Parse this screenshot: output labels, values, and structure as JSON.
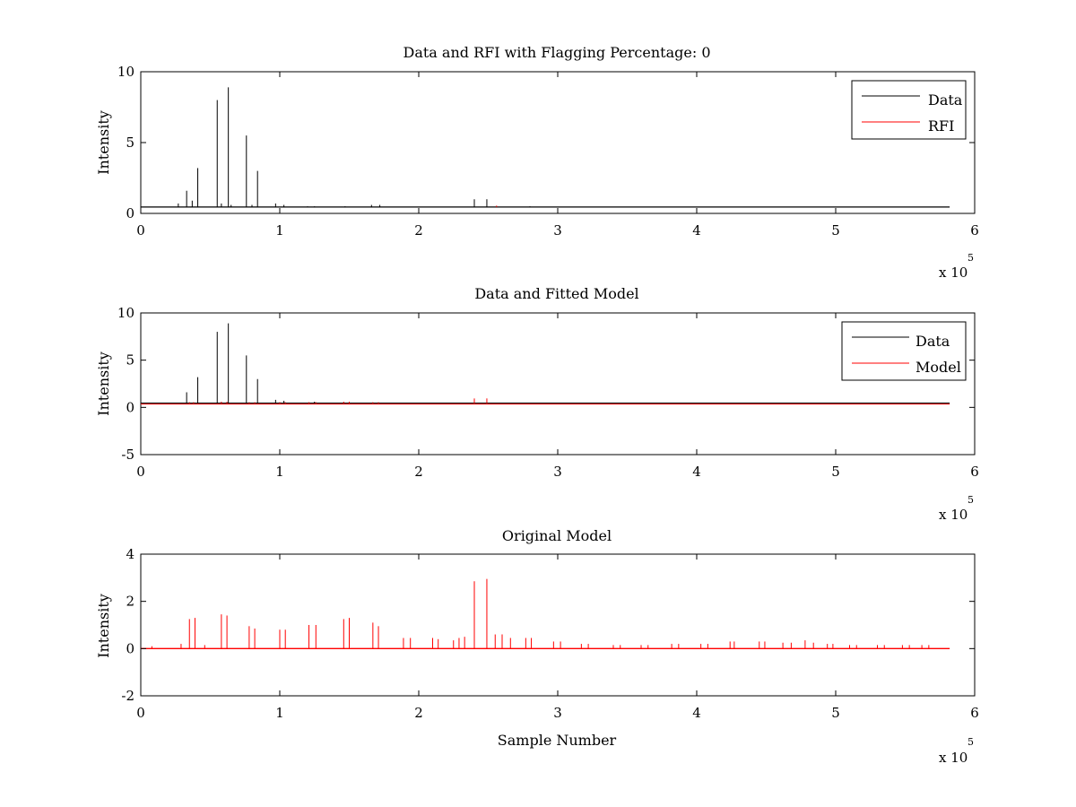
{
  "chart_data": [
    {
      "type": "line",
      "title": "Data and RFI with Flagging Percentage: 0",
      "xlabel": "",
      "ylabel": "Intensity",
      "xlim": [
        0,
        6
      ],
      "ylim": [
        0,
        10
      ],
      "xticks": [
        "0",
        "1",
        "2",
        "3",
        "4",
        "5",
        "6"
      ],
      "yticks": [
        "0",
        "5",
        "10"
      ],
      "x_multiplier": {
        "base": "x 10",
        "exponent": "5"
      },
      "legend": "top-right",
      "grid": false,
      "baseline": 0.45,
      "series": [
        {
          "name": "Data",
          "color": "#000000",
          "x": [
            0.27,
            0.33,
            0.37,
            0.41,
            0.55,
            0.58,
            0.63,
            0.65,
            0.76,
            0.8,
            0.84,
            0.97,
            1.03,
            1.2,
            1.25,
            1.47,
            1.66,
            1.72,
            2.4,
            2.49,
            2.8
          ],
          "values": [
            0.7,
            1.6,
            0.9,
            3.2,
            8.0,
            0.7,
            8.9,
            0.6,
            5.5,
            0.6,
            3.0,
            0.7,
            0.6,
            0.5,
            0.5,
            0.5,
            0.6,
            0.6,
            1.0,
            1.0,
            0.5
          ]
        },
        {
          "name": "RFI",
          "color": "#ff0000",
          "x": [
            2.56
          ],
          "values": [
            0.55
          ]
        }
      ]
    },
    {
      "type": "line",
      "title": "Data and Fitted Model",
      "xlabel": "",
      "ylabel": "Intensity",
      "xlim": [
        0,
        6
      ],
      "ylim": [
        -5,
        10
      ],
      "xticks": [
        "0",
        "1",
        "2",
        "3",
        "4",
        "5",
        "6"
      ],
      "yticks": [
        "-5",
        "0",
        "5",
        "10"
      ],
      "x_multiplier": {
        "base": "x 10",
        "exponent": "5"
      },
      "legend": "top-right",
      "grid": false,
      "baseline": 0.45,
      "series": [
        {
          "name": "Data",
          "color": "#000000",
          "x": [
            0.33,
            0.41,
            0.55,
            0.63,
            0.76,
            0.84,
            0.97,
            1.03,
            1.25
          ],
          "values": [
            1.6,
            3.2,
            8.0,
            8.9,
            5.5,
            3.0,
            0.8,
            0.7,
            0.6
          ]
        },
        {
          "name": "Model",
          "color": "#ff0000",
          "x": [
            0.35,
            0.38,
            0.58,
            0.62,
            0.78,
            0.82,
            1.0,
            1.04,
            1.21,
            1.26,
            1.46,
            1.5,
            1.67,
            1.71,
            2.4,
            2.49
          ],
          "values": [
            0.55,
            0.55,
            0.6,
            0.6,
            0.55,
            0.55,
            0.55,
            0.55,
            0.55,
            0.55,
            0.6,
            0.6,
            0.55,
            0.55,
            0.95,
            0.95
          ]
        }
      ]
    },
    {
      "type": "line",
      "title": "Original Model",
      "xlabel": "Sample Number",
      "ylabel": "Intensity",
      "xlim": [
        0,
        6
      ],
      "ylim": [
        -2,
        4
      ],
      "xticks": [
        "0",
        "1",
        "2",
        "3",
        "4",
        "5",
        "6"
      ],
      "yticks": [
        "-2",
        "0",
        "2",
        "4"
      ],
      "x_multiplier": {
        "base": "x 10",
        "exponent": "5"
      },
      "grid": false,
      "baseline": 0,
      "series": [
        {
          "color": "#ff0000",
          "x": [
            0.08,
            0.29,
            0.35,
            0.39,
            0.46,
            0.58,
            0.62,
            0.78,
            0.82,
            1.0,
            1.04,
            1.21,
            1.26,
            1.46,
            1.5,
            1.67,
            1.71,
            1.89,
            1.94,
            2.1,
            2.14,
            2.25,
            2.29,
            2.33,
            2.4,
            2.49,
            2.55,
            2.6,
            2.66,
            2.77,
            2.81,
            2.97,
            3.02,
            3.17,
            3.22,
            3.4,
            3.45,
            3.6,
            3.65,
            3.82,
            3.87,
            4.03,
            4.08,
            4.24,
            4.27,
            4.45,
            4.49,
            4.62,
            4.68,
            4.78,
            4.84,
            4.94,
            4.98,
            5.1,
            5.15,
            5.3,
            5.35,
            5.48,
            5.53,
            5.62,
            5.67
          ],
          "values": [
            0.1,
            0.2,
            1.25,
            1.3,
            0.15,
            1.45,
            1.4,
            0.95,
            0.85,
            0.8,
            0.8,
            1.0,
            1.0,
            1.25,
            1.3,
            1.1,
            0.95,
            0.45,
            0.45,
            0.45,
            0.4,
            0.35,
            0.45,
            0.5,
            2.85,
            2.95,
            0.6,
            0.6,
            0.45,
            0.45,
            0.45,
            0.3,
            0.3,
            0.2,
            0.2,
            0.15,
            0.15,
            0.15,
            0.15,
            0.2,
            0.2,
            0.2,
            0.2,
            0.3,
            0.3,
            0.3,
            0.3,
            0.25,
            0.25,
            0.35,
            0.25,
            0.2,
            0.2,
            0.15,
            0.15,
            0.15,
            0.15,
            0.15,
            0.15,
            0.15,
            0.15
          ]
        }
      ]
    }
  ]
}
